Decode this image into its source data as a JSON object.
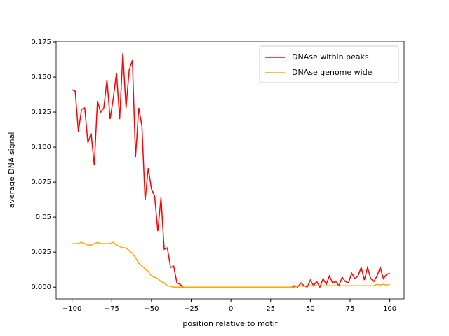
{
  "chart_data": {
    "type": "line",
    "x_label": "position relative to motif",
    "y_label": "average DNA signal",
    "x": [
      -100,
      -98,
      -96,
      -94,
      -92,
      -90,
      -88,
      -86,
      -84,
      -82,
      -80,
      -78,
      -76,
      -74,
      -72,
      -70,
      -68,
      -66,
      -64,
      -62,
      -60,
      -58,
      -56,
      -54,
      -52,
      -50,
      -48,
      -46,
      -44,
      -42,
      -40,
      -38,
      -36,
      -34,
      -32,
      -30,
      -28,
      -26,
      -24,
      -22,
      -20,
      -18,
      -16,
      -14,
      -12,
      -10,
      -8,
      -6,
      -4,
      -2,
      0,
      2,
      4,
      6,
      8,
      10,
      12,
      14,
      16,
      18,
      20,
      22,
      24,
      26,
      28,
      30,
      32,
      34,
      36,
      38,
      40,
      42,
      44,
      46,
      48,
      50,
      52,
      54,
      56,
      58,
      60,
      62,
      64,
      66,
      68,
      70,
      72,
      74,
      76,
      78,
      80,
      82,
      84,
      86,
      88,
      90,
      92,
      94,
      96,
      98,
      100
    ],
    "series": [
      {
        "name": "DNAse within peaks",
        "color": "#ff0000",
        "values": [
          0.141,
          0.14,
          0.111,
          0.127,
          0.128,
          0.103,
          0.11,
          0.087,
          0.133,
          0.125,
          0.128,
          0.148,
          0.12,
          0.135,
          0.153,
          0.12,
          0.167,
          0.128,
          0.155,
          0.162,
          0.093,
          0.128,
          0.115,
          0.062,
          0.085,
          0.07,
          0.065,
          0.04,
          0.064,
          0.027,
          0.028,
          0.014,
          0.015,
          0.003,
          0.002,
          0,
          0,
          0,
          0,
          0,
          0,
          0,
          0,
          0,
          0,
          0,
          0,
          0,
          0,
          0,
          0,
          0,
          0,
          0,
          0,
          0,
          0,
          0,
          0,
          0,
          0,
          0,
          0,
          0,
          0,
          0,
          0,
          0,
          0,
          0,
          0.001,
          0,
          0.003,
          0.001,
          0,
          0.005,
          0.001,
          0.004,
          0,
          0.006,
          0.002,
          0.008,
          0.003,
          0.004,
          0.001,
          0.007,
          0.004,
          0.003,
          0.01,
          0.006,
          0.008,
          0.014,
          0.005,
          0.014,
          0.006,
          0.004,
          0.008,
          0.014,
          0.006,
          0.009,
          0.01
        ]
      },
      {
        "name": "DNAse genome wide",
        "color": "#ffa500",
        "values": [
          0.031,
          0.031,
          0.031,
          0.032,
          0.031,
          0.03,
          0.03,
          0.031,
          0.032,
          0.031,
          0.031,
          0.031,
          0.031,
          0.032,
          0.03,
          0.029,
          0.028,
          0.028,
          0.026,
          0.024,
          0.021,
          0.017,
          0.015,
          0.013,
          0.011,
          0.008,
          0.007,
          0.006,
          0.004,
          0.003,
          0.001,
          0.0005,
          0,
          0,
          0,
          0,
          0,
          0,
          0,
          0,
          0,
          0,
          0,
          0,
          0,
          0,
          0,
          0,
          0,
          0,
          0,
          0,
          0,
          0,
          0,
          0,
          0,
          0,
          0,
          0,
          0,
          0,
          0,
          0,
          0,
          0,
          0,
          0,
          0,
          0,
          0,
          0.0005,
          0.001,
          0.0005,
          0.001,
          0.001,
          0.001,
          0.001,
          0.001,
          0.001,
          0.001,
          0.001,
          0.001,
          0.001,
          0.001,
          0.001,
          0.001,
          0.001,
          0.001,
          0.001,
          0.001,
          0.001,
          0.001,
          0.001,
          0.001,
          0.001,
          0.002,
          0.0015,
          0.002,
          0.0015,
          0.002
        ]
      }
    ],
    "xlim": [
      -110,
      109
    ],
    "ylim": [
      -0.0084,
      0.1755
    ],
    "xticks": [
      {
        "value": -100,
        "label": "−100"
      },
      {
        "value": -75,
        "label": "−75"
      },
      {
        "value": -50,
        "label": "−50"
      },
      {
        "value": -25,
        "label": "−25"
      },
      0,
      25,
      50,
      75,
      100
    ],
    "yticks": [
      {
        "value": 0,
        "label": "0.000"
      },
      0.025,
      0.05,
      {
        "value": 0.075,
        "label": "0.075"
      },
      {
        "value": 0.1,
        "label": "0.100"
      },
      0.125,
      {
        "value": 0.15,
        "label": "0.150"
      },
      0.175
    ],
    "legend": "upper right"
  }
}
